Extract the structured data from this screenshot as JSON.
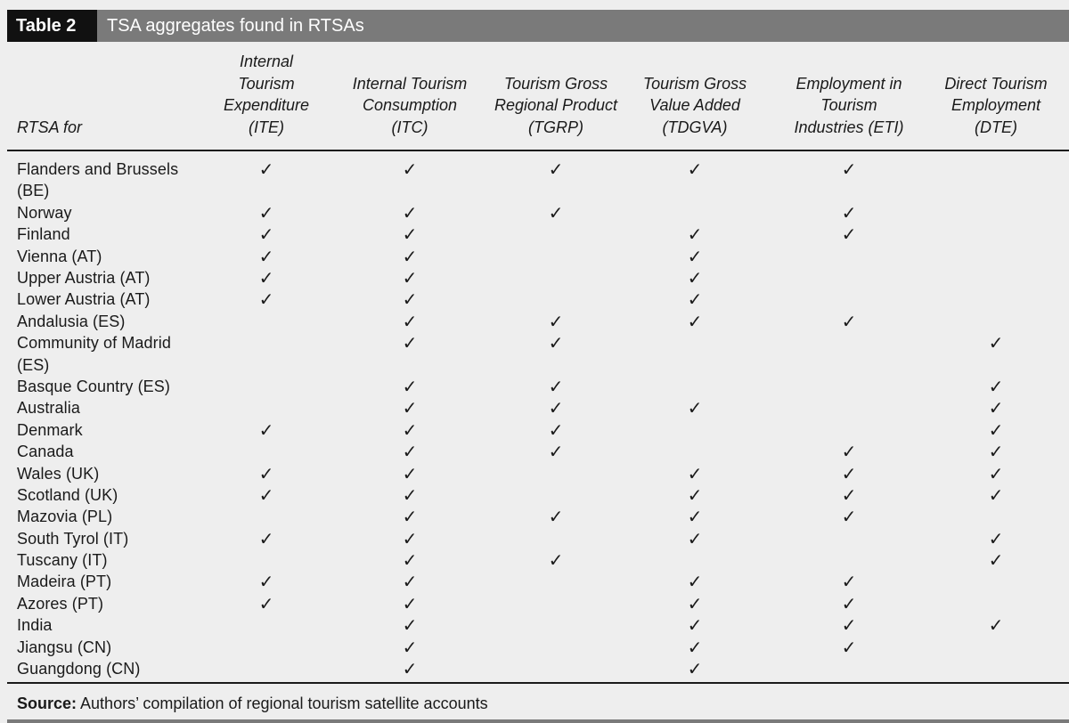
{
  "table": {
    "label": "Table 2",
    "title": "TSA aggregates found in RTSAs",
    "row_header": "RTSA for",
    "columns": [
      {
        "line1": "Internal",
        "line2": "Tourism",
        "line3": "Expenditure",
        "line4": "(ITE)"
      },
      {
        "line1": "",
        "line2": "Internal Tourism",
        "line3": "Consumption",
        "line4": "(ITC)"
      },
      {
        "line1": "",
        "line2": "Tourism Gross",
        "line3": "Regional Product",
        "line4": "(TGRP)"
      },
      {
        "line1": "",
        "line2": "Tourism Gross",
        "line3": "Value Added",
        "line4": "(TDGVA)"
      },
      {
        "line1": "",
        "line2": "Employment in",
        "line3": "Tourism",
        "line4": "Industries (ETI)"
      },
      {
        "line1": "",
        "line2": "Direct Tourism",
        "line3": "Employment",
        "line4": "(DTE)"
      }
    ],
    "check_symbol": "✓",
    "rows": [
      {
        "name1": "Flanders and Brussels",
        "name2": "(BE)",
        "checks": [
          true,
          true,
          true,
          true,
          true,
          false
        ]
      },
      {
        "name1": "Norway",
        "name2": "",
        "checks": [
          true,
          true,
          true,
          false,
          true,
          false
        ]
      },
      {
        "name1": "Finland",
        "name2": "",
        "checks": [
          true,
          true,
          false,
          true,
          true,
          false
        ]
      },
      {
        "name1": "Vienna (AT)",
        "name2": "",
        "checks": [
          true,
          true,
          false,
          true,
          false,
          false
        ]
      },
      {
        "name1": "Upper Austria (AT)",
        "name2": "",
        "checks": [
          true,
          true,
          false,
          true,
          false,
          false
        ]
      },
      {
        "name1": "Lower Austria (AT)",
        "name2": "",
        "checks": [
          true,
          true,
          false,
          true,
          false,
          false
        ]
      },
      {
        "name1": "Andalusia (ES)",
        "name2": "",
        "checks": [
          false,
          true,
          true,
          true,
          true,
          false
        ]
      },
      {
        "name1": "Community of Madrid",
        "name2": "(ES)",
        "checks": [
          false,
          true,
          true,
          false,
          false,
          true
        ]
      },
      {
        "name1": "Basque Country (ES)",
        "name2": "",
        "checks": [
          false,
          true,
          true,
          false,
          false,
          true
        ]
      },
      {
        "name1": "Australia",
        "name2": "",
        "checks": [
          false,
          true,
          true,
          true,
          false,
          true
        ]
      },
      {
        "name1": "Denmark",
        "name2": "",
        "checks": [
          true,
          true,
          true,
          false,
          false,
          true
        ]
      },
      {
        "name1": "Canada",
        "name2": "",
        "checks": [
          false,
          true,
          true,
          false,
          true,
          true
        ]
      },
      {
        "name1": "Wales (UK)",
        "name2": "",
        "checks": [
          true,
          true,
          false,
          true,
          true,
          true
        ]
      },
      {
        "name1": "Scotland (UK)",
        "name2": "",
        "checks": [
          true,
          true,
          false,
          true,
          true,
          true
        ]
      },
      {
        "name1": "Mazovia (PL)",
        "name2": "",
        "checks": [
          false,
          true,
          true,
          true,
          true,
          false
        ]
      },
      {
        "name1": "South Tyrol (IT)",
        "name2": "",
        "checks": [
          true,
          true,
          false,
          true,
          false,
          true
        ]
      },
      {
        "name1": "Tuscany (IT)",
        "name2": "",
        "checks": [
          false,
          true,
          true,
          false,
          false,
          true
        ]
      },
      {
        "name1": "Madeira (PT)",
        "name2": "",
        "checks": [
          true,
          true,
          false,
          true,
          true,
          false
        ]
      },
      {
        "name1": "Azores (PT)",
        "name2": "",
        "checks": [
          true,
          true,
          false,
          true,
          true,
          false
        ]
      },
      {
        "name1": "India",
        "name2": "",
        "checks": [
          false,
          true,
          false,
          true,
          true,
          true
        ]
      },
      {
        "name1": "Jiangsu (CN)",
        "name2": "",
        "checks": [
          false,
          true,
          false,
          true,
          true,
          false
        ]
      },
      {
        "name1": "Guangdong (CN)",
        "name2": "",
        "checks": [
          false,
          true,
          false,
          true,
          false,
          false
        ]
      }
    ],
    "source_label": "Source:",
    "source_text": " Authors’ compilation of regional tourism satellite accounts"
  },
  "colors": {
    "title_bar": "#7a7a7a",
    "label_bg": "#111111",
    "page_bg": "#eeeeee",
    "text": "#1a1a1a"
  }
}
